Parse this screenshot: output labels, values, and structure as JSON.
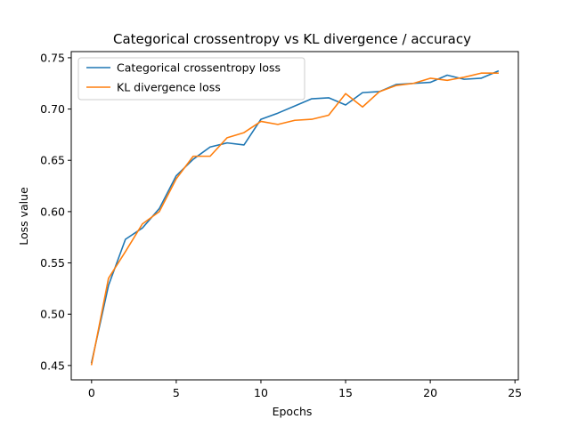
{
  "chart_data": {
    "type": "line",
    "title": "Categorical crossentropy vs KL divergence / accuracy",
    "xlabel": "Epochs",
    "ylabel": "Loss value",
    "xlim": [
      -1.2,
      25.2
    ],
    "ylim": [
      0.436,
      0.756
    ],
    "xticks": [
      0,
      5,
      10,
      15,
      20,
      25
    ],
    "yticks": [
      0.45,
      0.5,
      0.55,
      0.6,
      0.65,
      0.7,
      0.75
    ],
    "xtick_labels": [
      "0",
      "5",
      "10",
      "15",
      "20",
      "25"
    ],
    "ytick_labels": [
      "0.45",
      "0.50",
      "0.55",
      "0.60",
      "0.65",
      "0.70",
      "0.75"
    ],
    "grid": false,
    "legend_position": "top-left",
    "x": [
      0,
      1,
      2,
      3,
      4,
      5,
      6,
      7,
      8,
      9,
      10,
      11,
      12,
      13,
      14,
      15,
      16,
      17,
      18,
      19,
      20,
      21,
      22,
      23,
      24
    ],
    "series": [
      {
        "name": "Categorical crossentropy loss",
        "color": "#1f77b4",
        "values": [
          0.453,
          0.528,
          0.573,
          0.584,
          0.603,
          0.635,
          0.651,
          0.663,
          0.667,
          0.665,
          0.69,
          0.696,
          0.703,
          0.71,
          0.711,
          0.704,
          0.716,
          0.717,
          0.724,
          0.725,
          0.726,
          0.733,
          0.729,
          0.73,
          0.737
        ]
      },
      {
        "name": "KL divergence loss",
        "color": "#ff7f0e",
        "values": [
          0.451,
          0.535,
          0.561,
          0.588,
          0.6,
          0.632,
          0.654,
          0.654,
          0.672,
          0.677,
          0.688,
          0.685,
          0.689,
          0.69,
          0.694,
          0.715,
          0.702,
          0.717,
          0.723,
          0.725,
          0.73,
          0.728,
          0.731,
          0.735,
          0.735
        ]
      }
    ]
  }
}
